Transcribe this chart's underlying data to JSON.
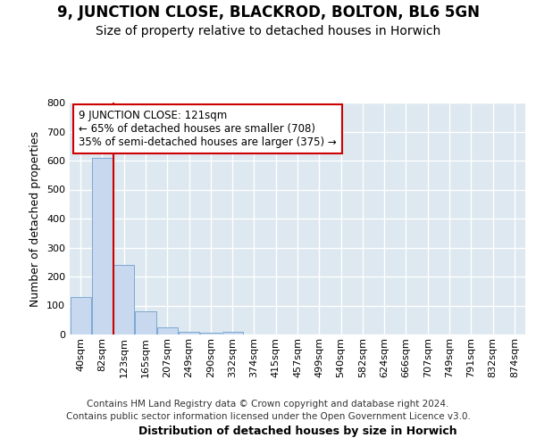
{
  "title": "9, JUNCTION CLOSE, BLACKROD, BOLTON, BL6 5GN",
  "subtitle": "Size of property relative to detached houses in Horwich",
  "xlabel": "Distribution of detached houses by size in Horwich",
  "ylabel": "Number of detached properties",
  "footer_line1": "Contains HM Land Registry data © Crown copyright and database right 2024.",
  "footer_line2": "Contains public sector information licensed under the Open Government Licence v3.0.",
  "bar_labels": [
    "40sqm",
    "82sqm",
    "123sqm",
    "165sqm",
    "207sqm",
    "249sqm",
    "290sqm",
    "332sqm",
    "374sqm",
    "415sqm",
    "457sqm",
    "499sqm",
    "540sqm",
    "582sqm",
    "624sqm",
    "666sqm",
    "707sqm",
    "749sqm",
    "791sqm",
    "832sqm",
    "874sqm"
  ],
  "bar_values": [
    130,
    610,
    240,
    80,
    25,
    10,
    5,
    10,
    0,
    0,
    0,
    0,
    0,
    0,
    0,
    0,
    0,
    0,
    0,
    0,
    0
  ],
  "bar_color": "#c8d8ee",
  "bar_edge_color": "#7ba8d4",
  "highlight_index": 2,
  "highlight_line_color": "#cc0000",
  "annotation_text": "9 JUNCTION CLOSE: 121sqm\n← 65% of detached houses are smaller (708)\n35% of semi-detached houses are larger (375) →",
  "annotation_box_color": "#ffffff",
  "annotation_border_color": "#cc0000",
  "ylim": [
    0,
    800
  ],
  "yticks": [
    0,
    100,
    200,
    300,
    400,
    500,
    600,
    700,
    800
  ],
  "fig_bg_color": "#ffffff",
  "plot_bg_color": "#dde8f0",
  "title_fontsize": 12,
  "subtitle_fontsize": 10,
  "axis_label_fontsize": 9,
  "tick_fontsize": 8,
  "footer_fontsize": 7.5,
  "annotation_fontsize": 8.5
}
